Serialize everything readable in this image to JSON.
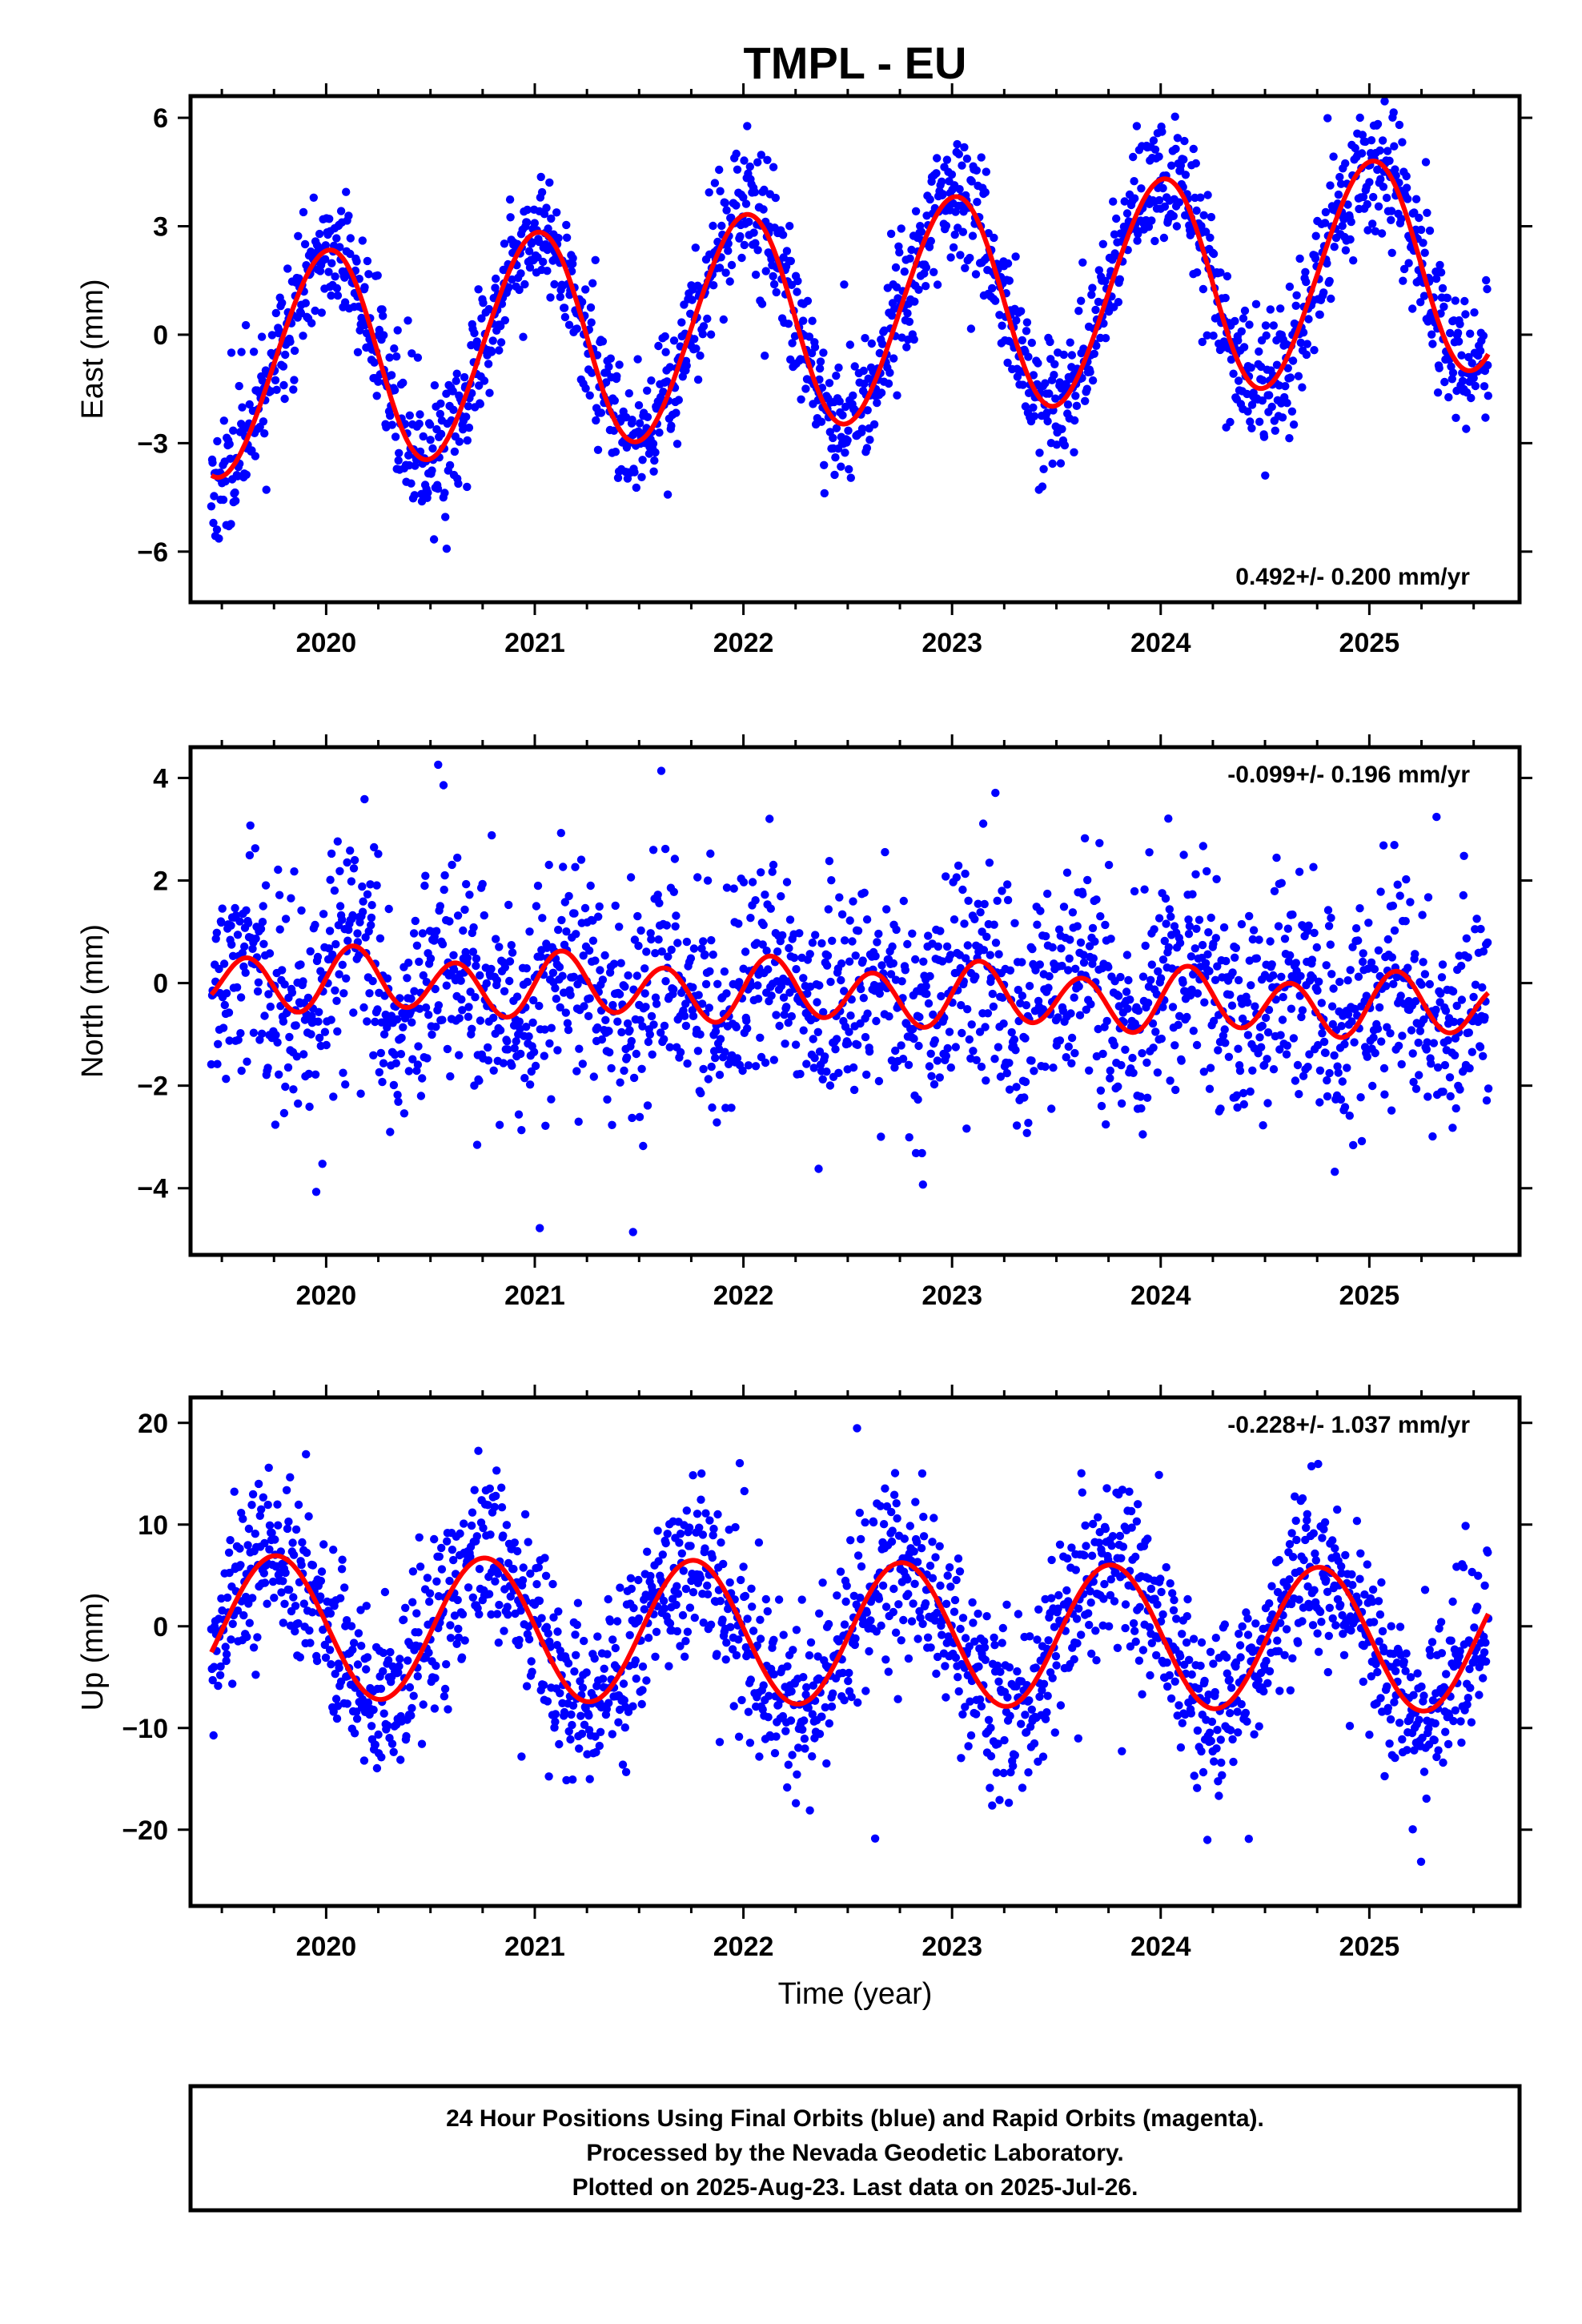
{
  "title": "TMPL - EU",
  "xlabel": "Time (year)",
  "note_lines": [
    "24 Hour Positions Using Final Orbits (blue) and Rapid Orbits (magenta).",
    "Processed by the Nevada Geodetic Laboratory.",
    "Plotted on 2025-Aug-23. Last data on 2025-Jul-26."
  ],
  "colors": {
    "points": "#0000ff",
    "fit": "#ff0000",
    "frame": "#000000"
  },
  "chart_data": [
    {
      "id": "east",
      "type": "scatter",
      "ylabel": "East (mm)",
      "rate": "0.492+/- 0.200 mm/yr",
      "rate_position": "bottom-right",
      "xlim": [
        2019.35,
        2025.72
      ],
      "ylim": [
        -7.4,
        6.6
      ],
      "yticks": [
        6,
        3,
        0,
        -3,
        -6
      ],
      "ytick_labels": [
        "6",
        "3",
        "0",
        "−3",
        "−6"
      ],
      "xticks": [
        2020,
        2021,
        2022,
        2023,
        2024,
        2025
      ],
      "xtick_labels": [
        "2020",
        "2021",
        "2022",
        "2023",
        "2024",
        "2025"
      ],
      "model": {
        "slope": 0.492,
        "offset": -0.95,
        "annual": [
          0.0,
          3.0
        ],
        "semiannual": [
          0.15,
          0.0
        ]
      },
      "x_range": [
        2019.45,
        2025.57
      ],
      "points": {
        "count": 1900,
        "noise_sd": 0.9,
        "seed": 11
      }
    },
    {
      "id": "north",
      "type": "scatter",
      "ylabel": "North (mm)",
      "rate": "-0.099+/- 0.196 mm/yr",
      "rate_position": "top-right",
      "xlim": [
        2019.35,
        2025.72
      ],
      "ylim": [
        -5.3,
        4.6
      ],
      "yticks": [
        4,
        2,
        0,
        -2,
        -4
      ],
      "ytick_labels": [
        "4",
        "2",
        "0",
        "−2",
        "−4"
      ],
      "xticks": [
        2020,
        2021,
        2022,
        2023,
        2024,
        2025
      ],
      "xtick_labels": [
        "2020",
        "2021",
        "2022",
        "2023",
        "2024",
        "2025"
      ],
      "model": {
        "slope": -0.099,
        "offset": 0.1,
        "annual": [
          0.15,
          0.05
        ],
        "semiannual": [
          0.55,
          0.0
        ]
      },
      "x_range": [
        2019.45,
        2025.57
      ],
      "points": {
        "count": 1900,
        "noise_sd": 1.05,
        "seed": 23
      }
    },
    {
      "id": "up",
      "type": "scatter",
      "ylabel": "Up (mm)",
      "rate": "-0.228+/- 1.037 mm/yr",
      "rate_position": "top-right",
      "xlim": [
        2019.35,
        2025.72
      ],
      "ylim": [
        -27.5,
        22.5
      ],
      "yticks": [
        20,
        10,
        0,
        -10,
        -20
      ],
      "ytick_labels": [
        "20",
        "10",
        "0",
        "−10",
        "−20"
      ],
      "xticks": [
        2020,
        2021,
        2022,
        2023,
        2024,
        2025
      ],
      "xtick_labels": [
        "2020",
        "2021",
        "2022",
        "2023",
        "2024",
        "2025"
      ],
      "model": {
        "slope": -0.228,
        "offset": 0.0,
        "annual": [
          -7.0,
          0.4
        ],
        "semiannual": [
          0.0,
          0.0
        ]
      },
      "x_range": [
        2019.45,
        2025.57
      ],
      "points": {
        "count": 1900,
        "noise_sd": 4.2,
        "seed": 37
      }
    }
  ]
}
